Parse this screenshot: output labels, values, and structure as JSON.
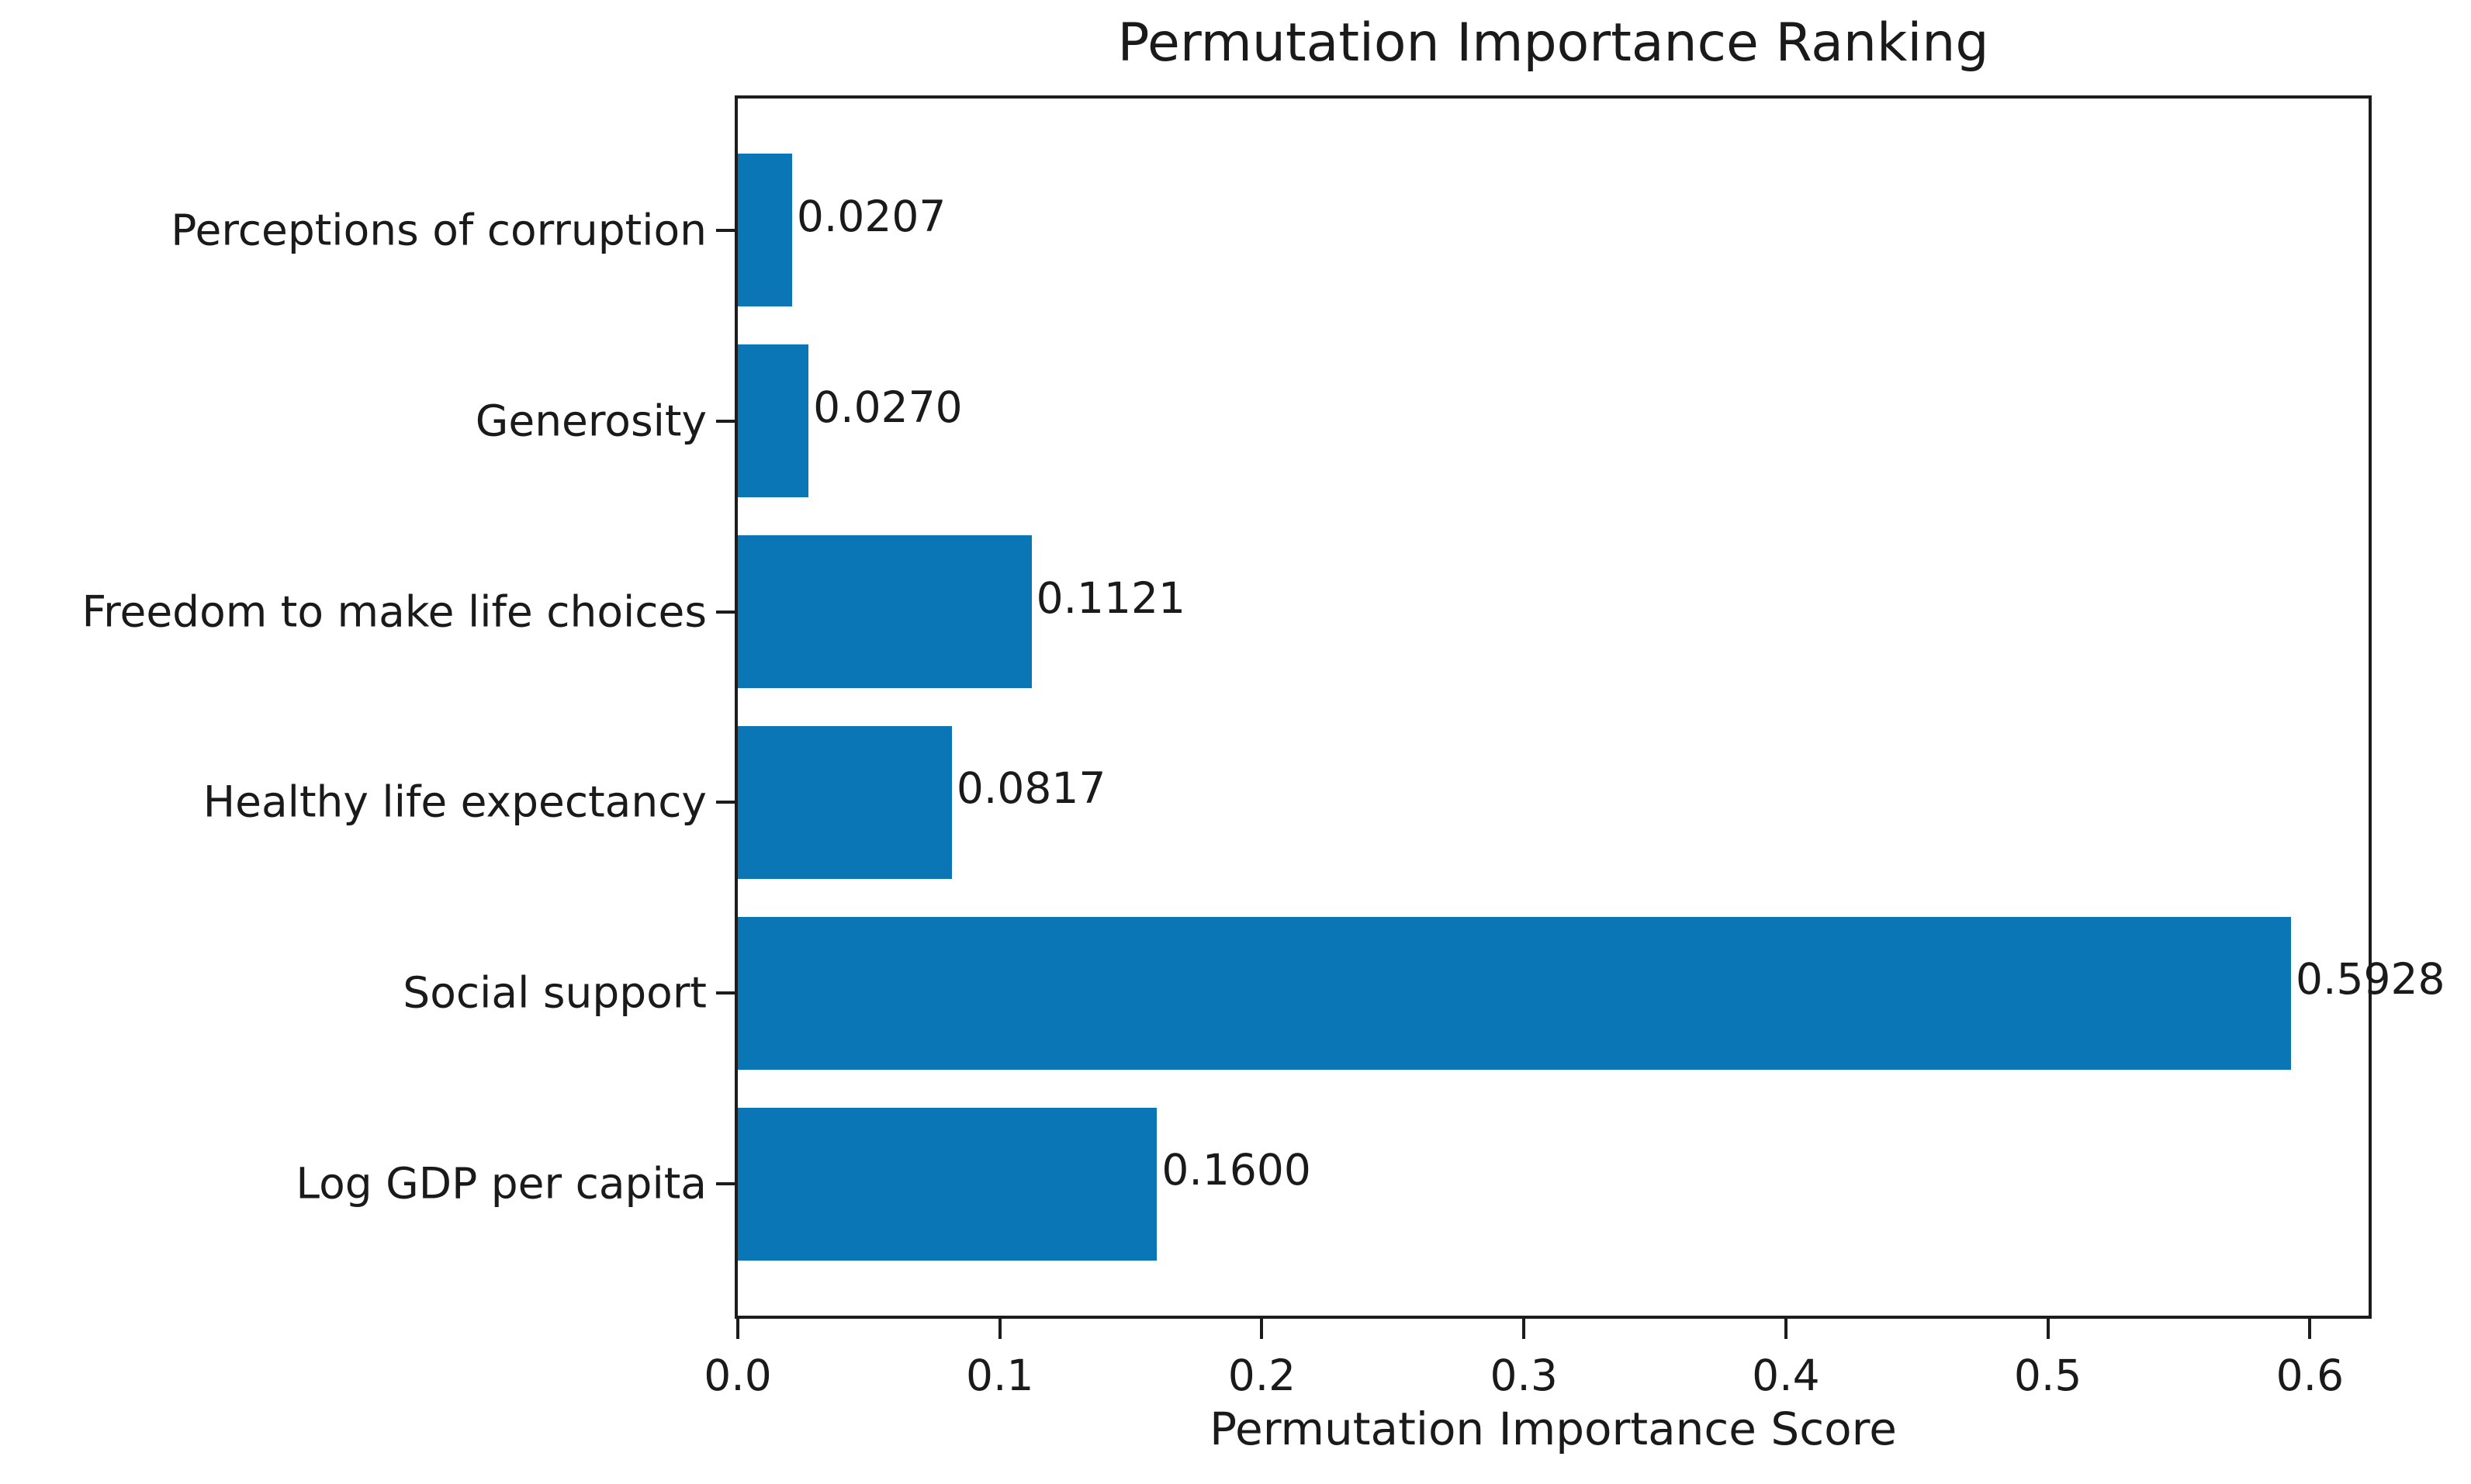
{
  "chart_data": {
    "type": "bar",
    "orientation": "horizontal",
    "title": "Permutation Importance Ranking",
    "xlabel": "Permutation Importance Score",
    "ylabel": "",
    "categories_top_to_bottom": [
      "Perceptions of corruption",
      "Generosity",
      "Freedom to make life choices",
      "Healthy life expectancy",
      "Social support",
      "Log GDP per capita"
    ],
    "values_top_to_bottom": [
      0.0207,
      0.027,
      0.1121,
      0.0817,
      0.5928,
      0.16
    ],
    "value_labels_top_to_bottom": [
      "0.0207",
      "0.0270",
      "0.1121",
      "0.0817",
      "0.5928",
      "0.1600"
    ],
    "xtick_labels": [
      "0.0",
      "0.1",
      "0.2",
      "0.3",
      "0.4",
      "0.5",
      "0.6"
    ],
    "xtick_values": [
      0.0,
      0.1,
      0.2,
      0.3,
      0.4,
      0.5,
      0.6
    ],
    "xlim": [
      0,
      0.6224
    ],
    "bar_color": "#0b76b6",
    "text_color": "#1a1a1a",
    "spine_color": "#1c1c1c",
    "grid": false,
    "legend_position": "none"
  }
}
